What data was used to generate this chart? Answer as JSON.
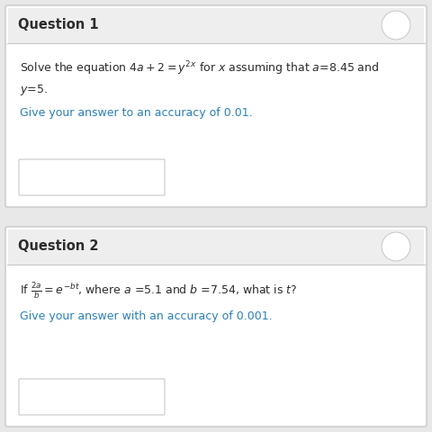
{
  "bg_color": "#e8e8e8",
  "white": "#ffffff",
  "border_color": "#c8c8c8",
  "header_bg": "#eeeeee",
  "q1_header": "Question 1",
  "q2_header": "Question 2",
  "q1_line1": "Solve the equation $4a + 2 = y^{2x}$ for $x$ assuming that $a$=8.45 and",
  "q1_line2": "$y$=5.",
  "q1_accuracy": "Give your answer to an accuracy of 0.01.",
  "q2_line1": "If $\\frac{2a}{b} = e^{-bt}$, where $a$ =5.1 and $b$ =7.54, what is $t$?",
  "q2_accuracy": "Give your answer with an accuracy of 0.001.",
  "text_color": "#2c2c2c",
  "blue_color": "#2980b9",
  "header_fontsize": 10.5,
  "body_fontsize": 9.0
}
